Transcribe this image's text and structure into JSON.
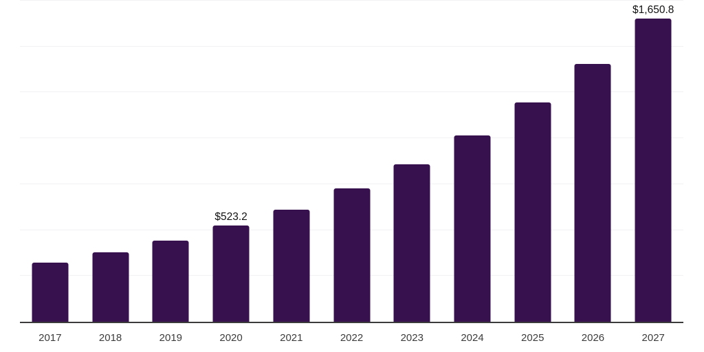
{
  "chart_data": {
    "type": "bar",
    "title": "",
    "xlabel": "",
    "ylabel": "",
    "categories": [
      "2017",
      "2018",
      "2019",
      "2020",
      "2021",
      "2022",
      "2023",
      "2024",
      "2025",
      "2026",
      "2027"
    ],
    "values": [
      324,
      378,
      444,
      523.2,
      610,
      727,
      858,
      1015,
      1195,
      1405,
      1650.8
    ],
    "data_labels": [
      "",
      "",
      "",
      "$523.2",
      "",
      "",
      "",
      "",
      "",
      "",
      "$1,650.8"
    ],
    "ylim": [
      0,
      1750
    ],
    "gridline_step": 250,
    "grid": "horizontal",
    "legend": "none",
    "y_axis_tick_labels": "none",
    "colors": {
      "bar": "#36114d",
      "gridline": "#f1f1f3",
      "axis_line": "#3b3b3b",
      "data_label_text": "#111111",
      "tick_label_text": "#3c3c3c",
      "background": "#ffffff"
    }
  }
}
